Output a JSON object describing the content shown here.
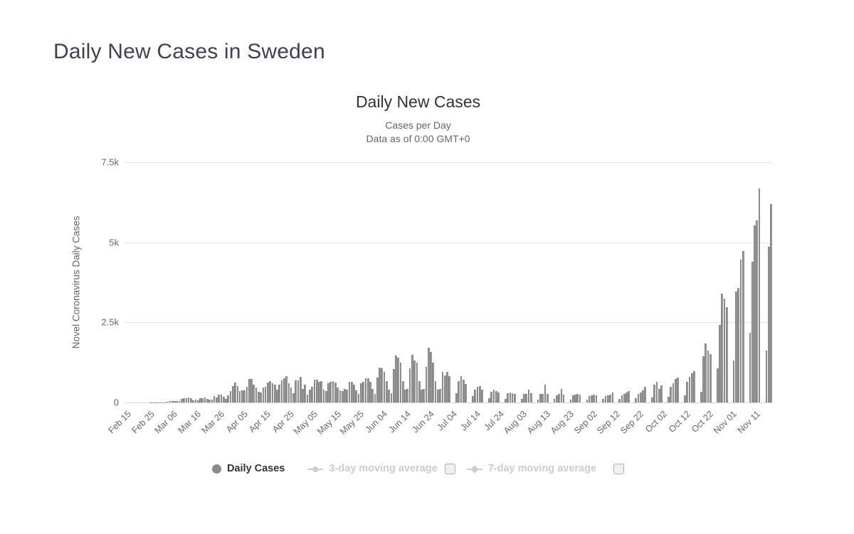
{
  "page": {
    "title": "Daily New Cases in Sweden"
  },
  "chart": {
    "title": "Daily New Cases",
    "subtitle1": "Cases per Day",
    "subtitle2": "Data as of 0:00 GMT+0",
    "y_axis_title": "Novel Coronavirus Daily Cases",
    "colors": {
      "bar": "#969696",
      "bar_edge": "#7f7f7f",
      "gridline": "#e6e6e6",
      "axis_line": "#ccd6eb",
      "axis_text": "#666666",
      "title_text": "#333333",
      "page_title_text": "#3d4254",
      "legend_active_text": "#333333",
      "legend_disabled": "#cccccc",
      "legend_marker": "#8a8a8a"
    },
    "legend_items": [
      {
        "label": "Daily Cases",
        "marker": "circle",
        "active": true,
        "checkbox": false
      },
      {
        "label": "3-day moving average",
        "marker": "line-circle",
        "active": false,
        "checkbox": true
      },
      {
        "label": "7-day moving average",
        "marker": "line-diamond",
        "active": false,
        "checkbox": true
      }
    ]
  },
  "chart_data": {
    "type": "bar",
    "title": "Daily New Cases",
    "subtitle": [
      "Cases per Day",
      "Data as of 0:00 GMT+0"
    ],
    "xlabel": "",
    "ylabel": "Novel Coronavirus Daily Cases",
    "ylim": [
      0,
      7500
    ],
    "grid": "horizontal",
    "legend_position": "bottom",
    "y_ticks": [
      {
        "value": 0,
        "label": "0"
      },
      {
        "value": 2500,
        "label": "2.5k"
      },
      {
        "value": 5000,
        "label": "5k"
      },
      {
        "value": 7500,
        "label": "7.5k"
      }
    ],
    "x_start_date": "2020-02-15",
    "x_interval": "daily",
    "x_tick_every_n_days": 10,
    "x_tick_labels": [
      "Feb 15",
      "Feb 25",
      "Mar 06",
      "Mar 16",
      "Mar 26",
      "Apr 05",
      "Apr 15",
      "Apr 25",
      "May 05",
      "May 15",
      "May 25",
      "Jun 04",
      "Jun 14",
      "Jun 24",
      "Jul 04",
      "Jul 14",
      "Jul 24",
      "Aug 03",
      "Aug 13",
      "Aug 23",
      "Sep 02",
      "Sep 12",
      "Sep 22",
      "Oct 02",
      "Oct 12",
      "Oct 22",
      "Nov 01",
      "Nov 11"
    ],
    "inactive_series": [
      "3-day moving average",
      "7-day moving average"
    ],
    "series": [
      {
        "name": "Daily Cases",
        "color": "#969696",
        "values": [
          0,
          0,
          0,
          0,
          0,
          0,
          0,
          0,
          0,
          0,
          0,
          1,
          5,
          4,
          2,
          1,
          3,
          9,
          22,
          42,
          43,
          36,
          42,
          45,
          107,
          143,
          140,
          156,
          139,
          69,
          91,
          57,
          123,
          132,
          153,
          122,
          81,
          90,
          206,
          162,
          240,
          250,
          180,
          110,
          219,
          360,
          512,
          612,
          519,
          365,
          387,
          376,
          487,
          726,
          722,
          544,
          466,
          332,
          322,
          465,
          497,
          613,
          676,
          606,
          563,
          392,
          545,
          682,
          751,
          812,
          610,
          463,
          286,
          695,
          681,
          790,
          428,
          562,
          235,
          404,
          495,
          702,
          705,
          642,
          656,
          401,
          348,
          602,
          637,
          673,
          625,
          466,
          383,
          350,
          422,
          394,
          649,
          637,
          547,
          383,
          272,
          597,
          648,
          749,
          749,
          637,
          429,
          272,
          774,
          1080,
          1056,
          948,
          656,
          403,
          287,
          1041,
          1474,
          1396,
          1247,
          656,
          403,
          433,
          1056,
          1481,
          1306,
          1247,
          656,
          403,
          433,
          1110,
          1698,
          1570,
          1247,
          656,
          403,
          433,
          947,
          839,
          947,
          821,
          0,
          0,
          283,
          667,
          829,
          716,
          587,
          0,
          0,
          191,
          398,
          495,
          512,
          398,
          0,
          0,
          135,
          338,
          398,
          365,
          312,
          0,
          0,
          105,
          283,
          312,
          295,
          264,
          0,
          0,
          104,
          257,
          268,
          390,
          295,
          0,
          0,
          98,
          256,
          274,
          552,
          268,
          0,
          0,
          105,
          231,
          256,
          426,
          241,
          0,
          0,
          84,
          219,
          247,
          265,
          236,
          0,
          0,
          79,
          208,
          231,
          252,
          228,
          0,
          0,
          102,
          204,
          229,
          248,
          312,
          0,
          0,
          119,
          219,
          256,
          301,
          358,
          0,
          0,
          134,
          268,
          312,
          387,
          482,
          0,
          0,
          155,
          554,
          652,
          428,
          524,
          0,
          0,
          179,
          498,
          602,
          725,
          768,
          0,
          0,
          224,
          649,
          798,
          902,
          970,
          0,
          0,
          334,
          1440,
          1840,
          1614,
          1506,
          0,
          0,
          1060,
          2420,
          3390,
          3240,
          2980,
          0,
          0,
          1310,
          3460,
          3570,
          4460,
          4730,
          0,
          0,
          2180,
          4400,
          5530,
          5690,
          6690,
          0,
          0,
          1620,
          4860,
          6190
        ]
      }
    ]
  }
}
